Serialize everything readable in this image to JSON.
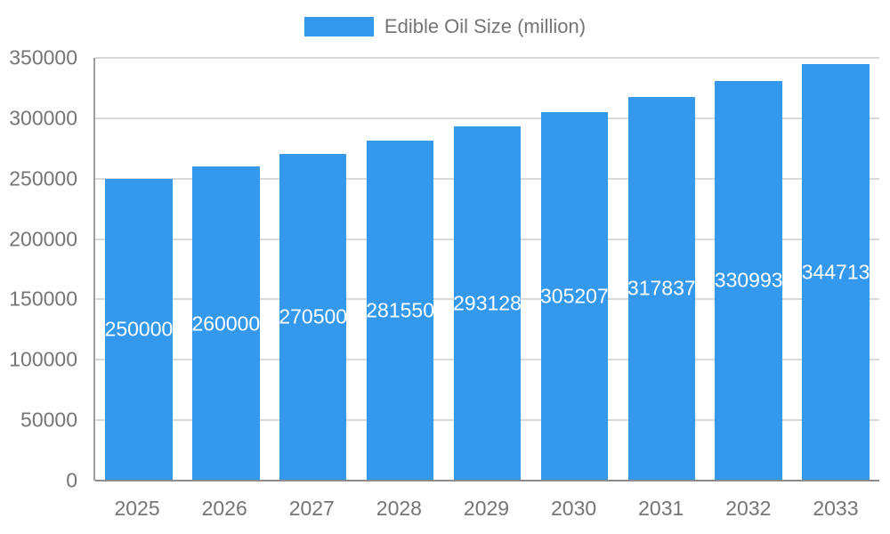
{
  "chart_data": {
    "type": "bar",
    "title": "Edible Oil Size (million)",
    "categories": [
      "2025",
      "2026",
      "2027",
      "2028",
      "2029",
      "2030",
      "2031",
      "2032",
      "2033"
    ],
    "values": [
      250000,
      260000,
      270500,
      281550,
      293128,
      305207,
      317837,
      330993,
      344713
    ],
    "xlabel": "",
    "ylabel": "",
    "ylim": [
      0,
      350000
    ],
    "yticks": [
      0,
      50000,
      100000,
      150000,
      200000,
      250000,
      300000,
      350000
    ],
    "grid": true,
    "legend_position": "top",
    "colors": {
      "bar": "#3498EC",
      "bar_value_label": "#ffffff",
      "axis_text": "#757575",
      "gridline": "#d9d9d9",
      "axis_line": "#8c8c8c"
    }
  }
}
